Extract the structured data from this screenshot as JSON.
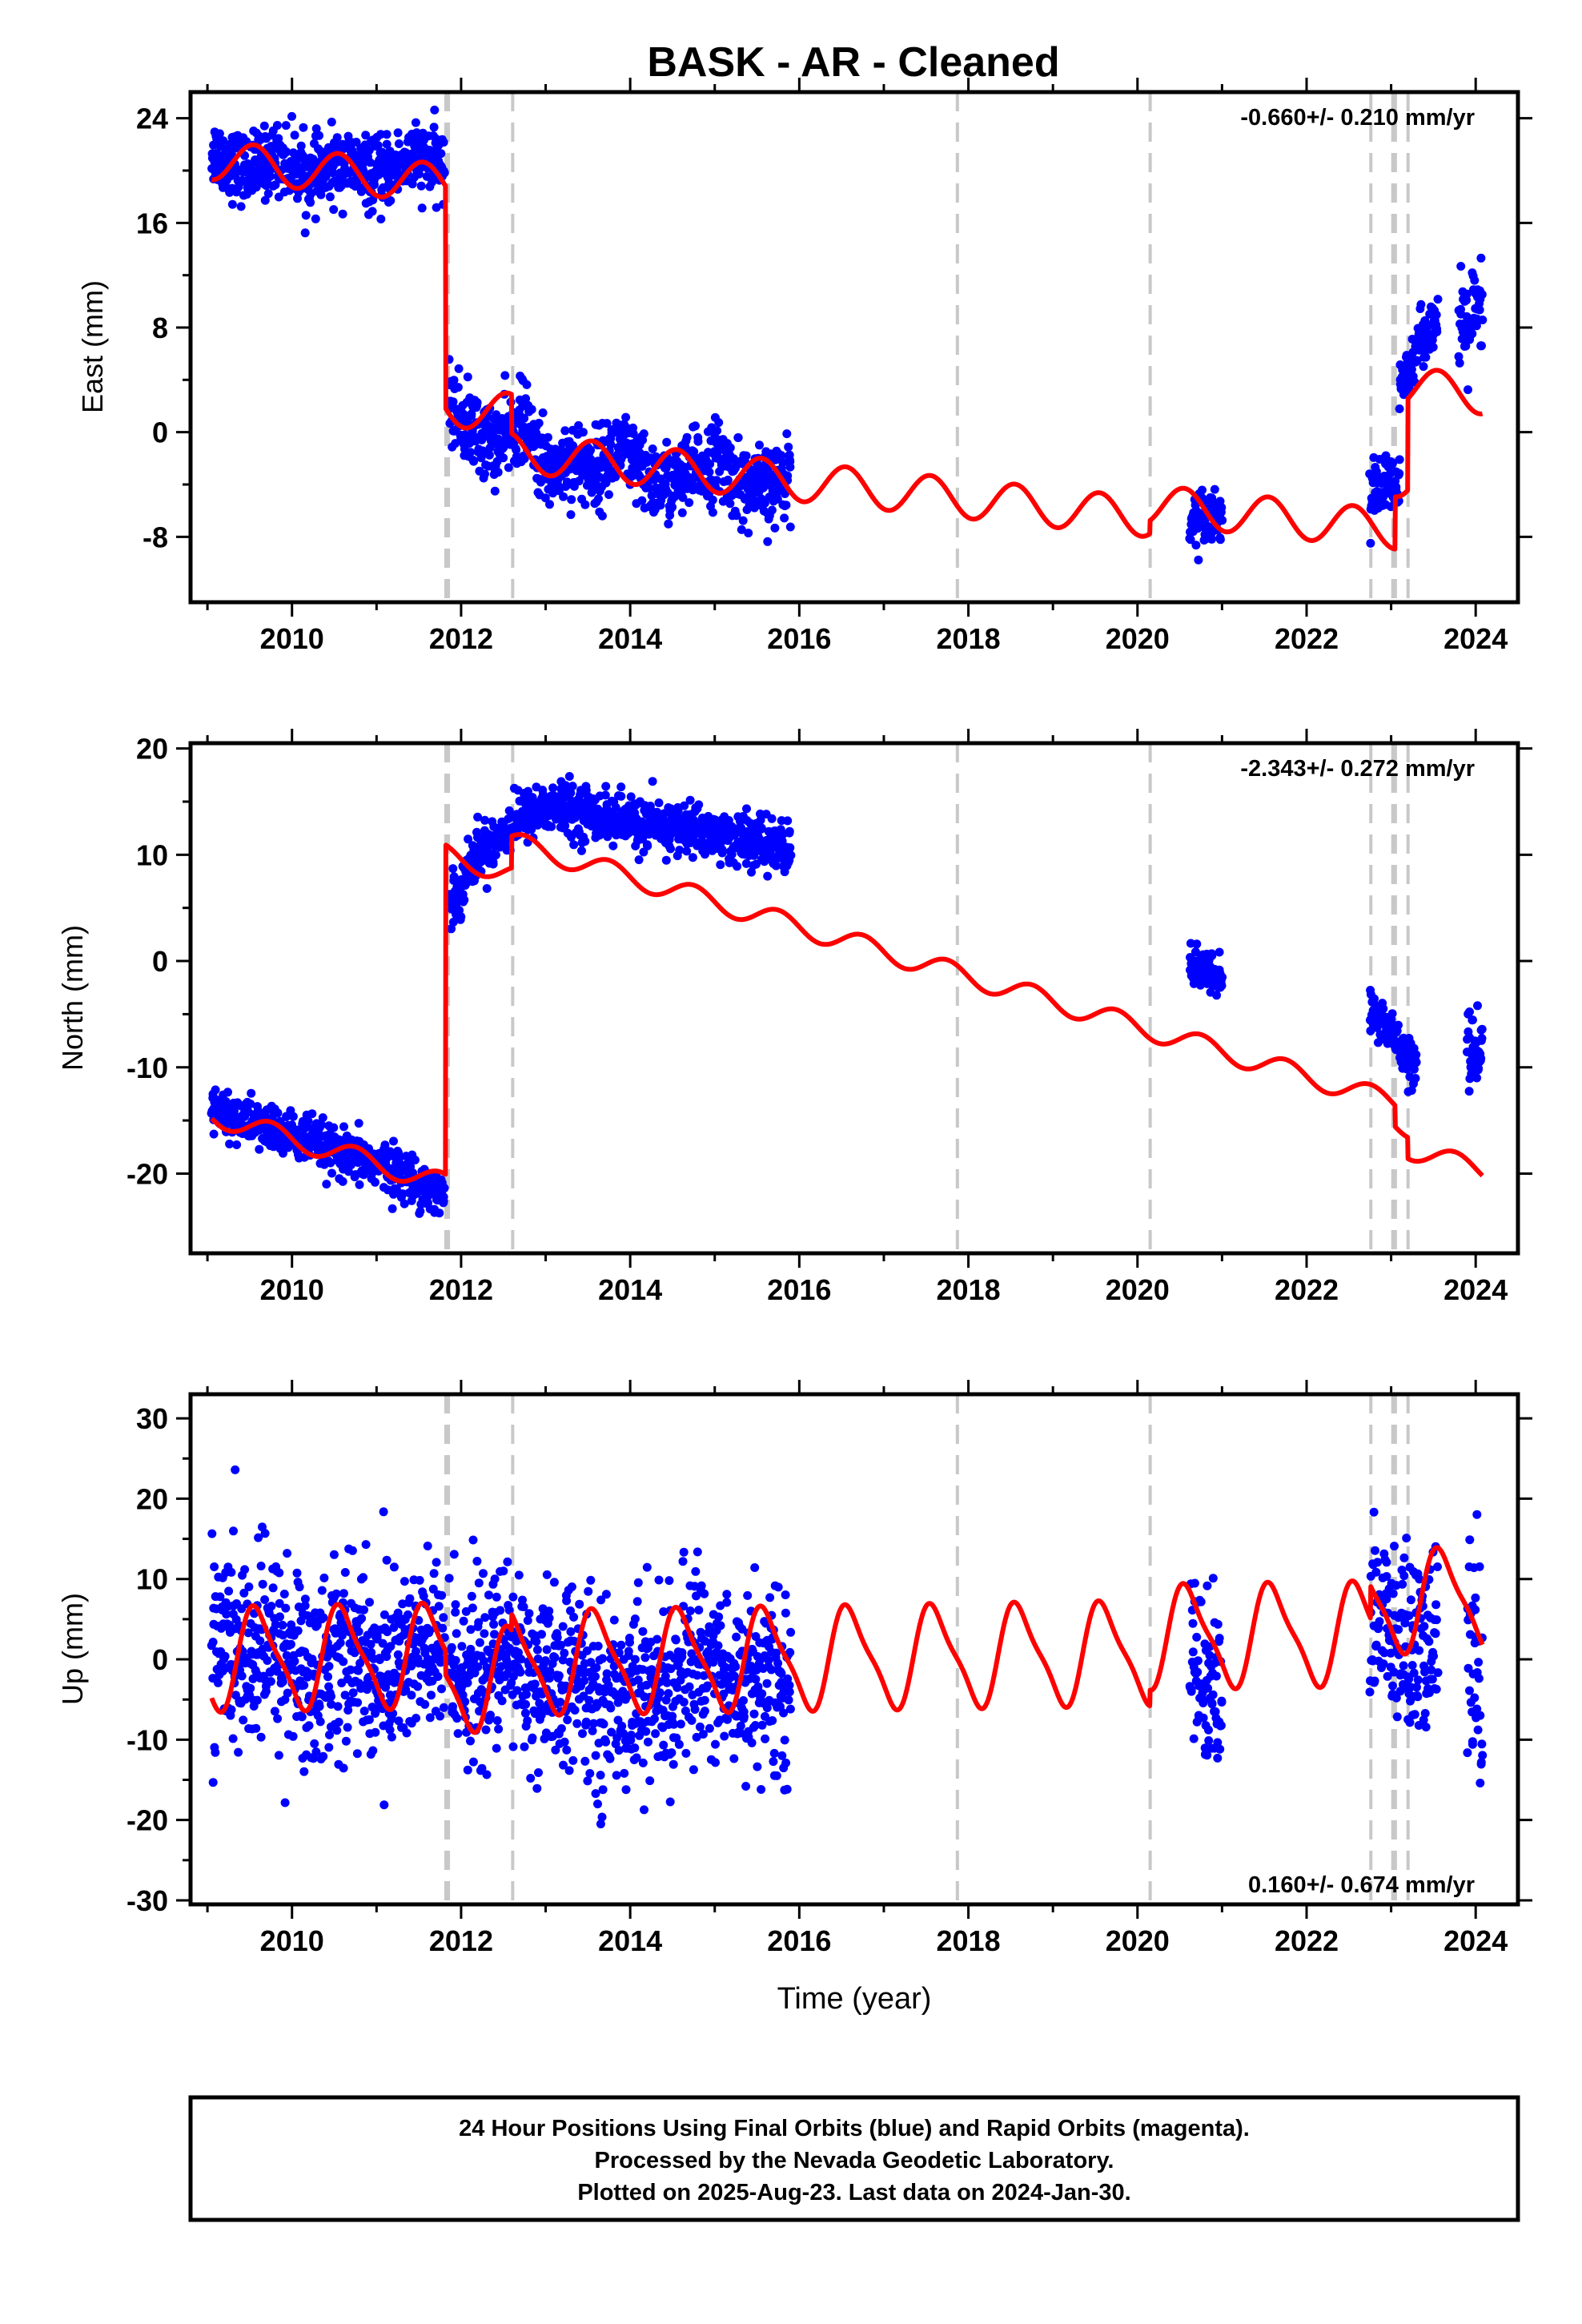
{
  "title": "BASK  - AR - Cleaned",
  "xlabel": "Time (year)",
  "footer": [
    "24 Hour Positions Using Final Orbits (blue) and Rapid Orbits (magenta).",
    "Processed by the Nevada Geodetic Laboratory.",
    "Plotted on 2025-Aug-23. Last data on 2024-Jan-30."
  ],
  "colors": {
    "final_orbits": "#0000ff",
    "model_fit": "#ff0000",
    "event_lines": "#c8c8c8",
    "frame": "#000000"
  },
  "event_lines": [
    2011.82,
    2011.85,
    2012.61,
    2017.87,
    2020.15,
    2022.76,
    2023.02,
    2023.05,
    2023.2
  ],
  "chart_data": [
    {
      "type": "scatter",
      "panel": "east",
      "ylabel": "East (mm)",
      "rate_label": "-0.660+/- 0.210 mm/yr",
      "xlim": [
        2008.8,
        2024.5
      ],
      "ylim": [
        -13,
        26
      ],
      "xticks": [
        2010,
        2012,
        2014,
        2016,
        2018,
        2020,
        2022,
        2024
      ],
      "xtick_labels": [
        "2010",
        "2012",
        "2014",
        "2016",
        "2018",
        "2020",
        "2022",
        "2024"
      ],
      "yticks": [
        24,
        16,
        8,
        0,
        -8
      ],
      "ytick_labels": [
        "24",
        "16",
        "8",
        "0",
        "-8"
      ],
      "series": [
        {
          "role": "daily positions",
          "segments": [
            {
              "x0": 2009.05,
              "x1": 2011.8,
              "y": [
                21.5,
                20.0,
                21.0,
                19.5,
                20.5,
                19.5,
                21.0,
                20.5
              ],
              "sd": 1.3
            },
            {
              "x0": 2011.86,
              "x1": 2015.9,
              "y": [
                2.0,
                0.0,
                -1.0,
                1.0,
                -3.0,
                -2.0,
                -3.0,
                -1.0,
                -3.5,
                -4.0,
                -3.0,
                -2.0,
                -4.0,
                -4.5,
                -3.0
              ],
              "sd": 1.5
            },
            {
              "x0": 2020.62,
              "x1": 2021.0,
              "y": [
                -7.0,
                -6.0,
                -6.5
              ],
              "sd": 1.0
            },
            {
              "x0": 2022.75,
              "x1": 2023.1,
              "y": [
                -5.0,
                -4.0,
                -4.5
              ],
              "sd": 1.2
            },
            {
              "x0": 2023.1,
              "x1": 2023.55,
              "y": [
                3.0,
                7.0,
                8.5
              ],
              "sd": 1.0
            },
            {
              "x0": 2023.8,
              "x1": 2024.08,
              "y": [
                7.0,
                8.5,
                9.0
              ],
              "sd": 2.0
            }
          ]
        },
        {
          "role": "model fit",
          "breaks": [
            {
              "x": 2011.82,
              "dy": -17.0
            },
            {
              "x": 2012.6,
              "dy": -3.0
            },
            {
              "x": 2020.15,
              "dy": 1.0
            },
            {
              "x": 2023.05,
              "dy": 4.0
            },
            {
              "x": 2023.2,
              "dy": 7.0
            }
          ],
          "start": {
            "x": 2009.05,
            "y": 20.8
          },
          "annual_amplitude": 1.5,
          "annual_phase": 0.3,
          "rate": -0.66
        }
      ]
    },
    {
      "type": "scatter",
      "panel": "north",
      "ylabel": "North (mm)",
      "rate_label": "-2.343+/- 0.272 mm/yr",
      "xlim": [
        2008.8,
        2024.5
      ],
      "ylim": [
        -27.5,
        20.5
      ],
      "xticks": [
        2010,
        2012,
        2014,
        2016,
        2018,
        2020,
        2022,
        2024
      ],
      "xtick_labels": [
        "2010",
        "2012",
        "2014",
        "2016",
        "2018",
        "2020",
        "2022",
        "2024"
      ],
      "yticks": [
        20,
        10,
        0,
        -10,
        -20
      ],
      "ytick_labels": [
        "20",
        "10",
        "0",
        "-10",
        "-20"
      ],
      "series": [
        {
          "role": "daily positions",
          "segments": [
            {
              "x0": 2009.05,
              "x1": 2011.8,
              "y": [
                -14.0,
                -15.0,
                -16.0,
                -17.0,
                -18.5,
                -19.0,
                -20.5,
                -22.0
              ],
              "sd": 1.1
            },
            {
              "x0": 2011.86,
              "x1": 2015.9,
              "y": [
                5.0,
                10.0,
                12.0,
                14.0,
                14.5,
                14.0,
                13.5,
                13.0,
                12.5,
                12.5,
                12.0,
                11.5,
                11.0,
                10.5
              ],
              "sd": 1.2
            },
            {
              "x0": 2020.62,
              "x1": 2021.0,
              "y": [
                -0.5,
                -1.0,
                -1.5
              ],
              "sd": 1.0
            },
            {
              "x0": 2022.75,
              "x1": 2023.3,
              "y": [
                -5.0,
                -6.0,
                -8.0,
                -10.0
              ],
              "sd": 1.1
            },
            {
              "x0": 2023.9,
              "x1": 2024.08,
              "y": [
                -8.0,
                -9.0
              ],
              "sd": 2.0
            }
          ]
        },
        {
          "role": "model fit",
          "breaks": [
            {
              "x": 2011.82,
              "dy": 31.0
            },
            {
              "x": 2012.6,
              "dy": 3.0
            },
            {
              "x": 2023.05,
              "dy": -2.0
            },
            {
              "x": 2023.2,
              "dy": -2.0
            }
          ],
          "start": {
            "x": 2009.05,
            "y": -14.5
          },
          "annual_amplitude": 1.0,
          "annual_phase": 0.5,
          "rate": -2.343
        }
      ]
    },
    {
      "type": "scatter",
      "panel": "up",
      "ylabel": "Up (mm)",
      "rate_label": "0.160+/- 0.674 mm/yr",
      "xlim": [
        2008.8,
        2024.5
      ],
      "ylim": [
        -30.5,
        33
      ],
      "xticks": [
        2010,
        2012,
        2014,
        2016,
        2018,
        2020,
        2022,
        2024
      ],
      "xtick_labels": [
        "2010",
        "2012",
        "2014",
        "2016",
        "2018",
        "2020",
        "2022",
        "2024"
      ],
      "yticks": [
        30,
        20,
        10,
        0,
        -10,
        -20,
        -30
      ],
      "ytick_labels": [
        "30",
        "20",
        "10",
        "0",
        "-10",
        "-20",
        "-30"
      ],
      "series": [
        {
          "role": "daily positions",
          "segments": [
            {
              "x0": 2009.05,
              "x1": 2011.8,
              "y": [
                3.0,
                0.0,
                2.0,
                -3.0,
                2.0,
                -2.0,
                1.0,
                0.0
              ],
              "sd": 6.0
            },
            {
              "x0": 2011.86,
              "x1": 2015.9,
              "y": [
                0.0,
                -2.0,
                1.0,
                -4.0,
                -2.0,
                -6.0,
                -3.0,
                -5.0,
                1.0,
                -3.0,
                -2.0,
                -4.0
              ],
              "sd": 5.5
            },
            {
              "x0": 2020.62,
              "x1": 2021.0,
              "y": [
                1.0,
                -3.0,
                -5.0
              ],
              "sd": 5.0
            },
            {
              "x0": 2022.75,
              "x1": 2023.55,
              "y": [
                8.0,
                3.0,
                2.0,
                0.0,
                3.0
              ],
              "sd": 6.0
            },
            {
              "x0": 2023.9,
              "x1": 2024.08,
              "y": [
                3.0,
                0.0
              ],
              "sd": 8.0
            }
          ]
        },
        {
          "role": "model fit",
          "breaks": [
            {
              "x": 2011.82,
              "dy": -3.0
            },
            {
              "x": 2012.6,
              "dy": 2.0
            },
            {
              "x": 2020.15,
              "dy": 2.0
            },
            {
              "x": 2022.76,
              "dy": 4.0
            }
          ],
          "start": {
            "x": 2009.05,
            "y": 0.0
          },
          "annual_amplitude": 6.0,
          "annual_phase": 0.35,
          "semiannual_amplitude": 1.5,
          "rate": 0.16
        }
      ]
    }
  ]
}
